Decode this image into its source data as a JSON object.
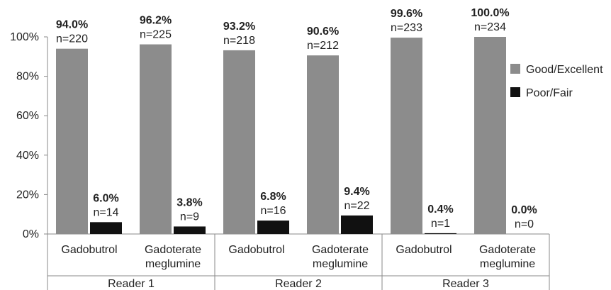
{
  "chart_data": {
    "type": "bar",
    "title": "",
    "xlabel": "",
    "ylabel": "",
    "ylim": [
      0,
      100
    ],
    "yticks": [
      "0%",
      "20%",
      "40%",
      "60%",
      "80%",
      "100%"
    ],
    "grid": false,
    "legend_position": "right",
    "groups": [
      "Reader 1",
      "Reader 2",
      "Reader 3"
    ],
    "categories": [
      [
        "Gadobutrol"
      ],
      [
        "Gadoterate",
        "meglumine"
      ],
      [
        "Gadobutrol"
      ],
      [
        "Gadoterate",
        "meglumine"
      ],
      [
        "Gadobutrol"
      ],
      [
        "Gadoterate",
        "meglumine"
      ]
    ],
    "series": [
      {
        "name": "Good/Excellent",
        "color": "#8c8c8c",
        "values": [
          94.0,
          96.2,
          93.2,
          90.6,
          99.6,
          100.0
        ],
        "value_labels": [
          "94.0%",
          "96.2%",
          "93.2%",
          "90.6%",
          "99.6%",
          "100.0%"
        ],
        "n_labels": [
          "n=220",
          "n=225",
          "n=218",
          "n=212",
          "n=233",
          "n=234"
        ]
      },
      {
        "name": "Poor/Fair",
        "color": "#111111",
        "values": [
          6.0,
          3.8,
          6.8,
          9.4,
          0.4,
          0.0
        ],
        "value_labels": [
          "6.0%",
          "3.8%",
          "6.8%",
          "9.4%",
          "0.4%",
          "0.0%"
        ],
        "n_labels": [
          "n=14",
          "n=9",
          "n=16",
          "n=22",
          "n=1",
          "n=0"
        ]
      }
    ]
  }
}
